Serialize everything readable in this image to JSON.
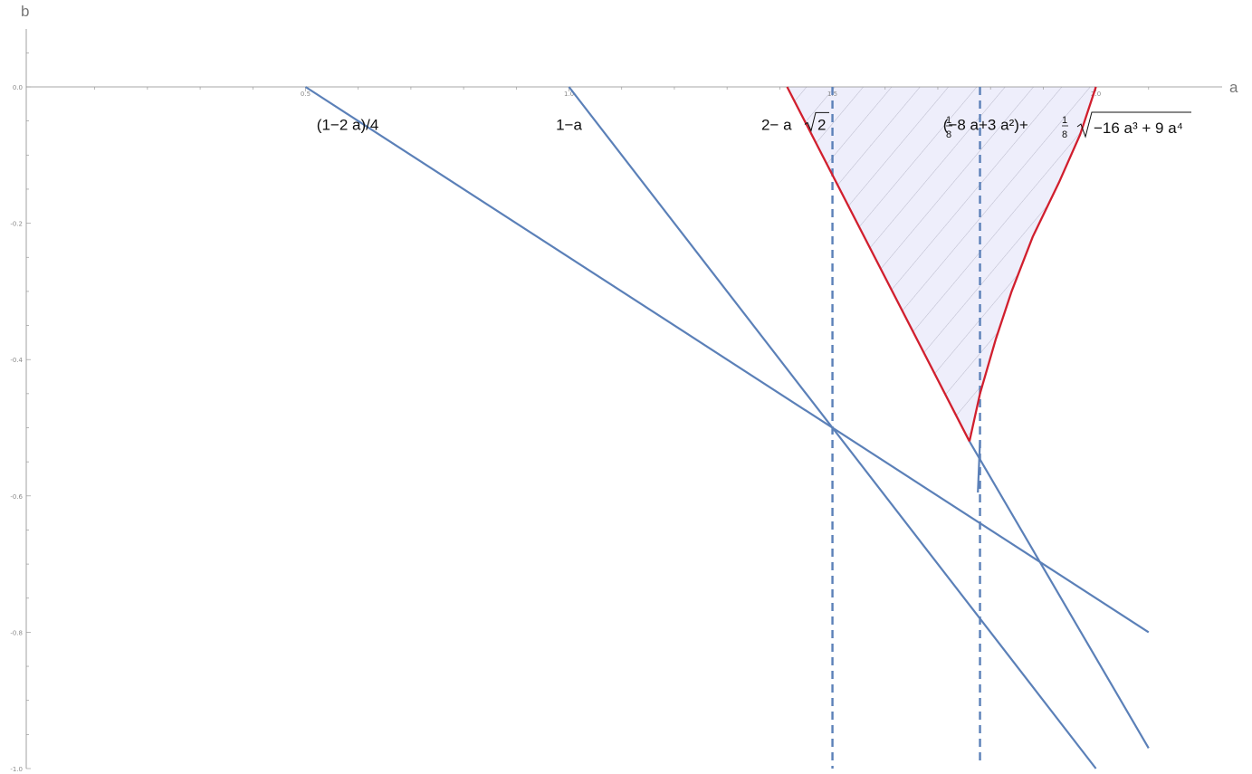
{
  "chart_data": {
    "type": "line",
    "xlabel": "a",
    "ylabel": "b",
    "xlim": [
      -0.03,
      2.2
    ],
    "ylim": [
      -1.0,
      0.085
    ],
    "x_ticks": [
      {
        "value": 0.5,
        "label": "0.5"
      },
      {
        "value": 1.0,
        "label": "1.0"
      },
      {
        "value": 1.5,
        "label": "1.5"
      },
      {
        "value": 2.0,
        "label": "2.0"
      }
    ],
    "y_ticks": [
      {
        "value": 0.0,
        "label": "0.0"
      },
      {
        "value": -0.2,
        "label": "-0.2"
      },
      {
        "value": -0.4,
        "label": "-0.4"
      },
      {
        "value": -0.6,
        "label": "-0.6"
      },
      {
        "value": -0.8,
        "label": "-0.8"
      },
      {
        "value": -1.0,
        "label": "-1.0"
      }
    ],
    "colors": {
      "lines": "#5b80b8",
      "boundary": "#d11f2e",
      "region_fill": "#eeeefb",
      "hatch": "#b4b4c6"
    },
    "series": [
      {
        "name": "(1−2 a)/4",
        "type": "line",
        "x": [
          0.5,
          2.1
        ],
        "y": [
          0.0,
          -0.8
        ]
      },
      {
        "name": "1−a",
        "type": "line",
        "x": [
          1.0,
          2.0
        ],
        "y": [
          0.0,
          -1.0
        ]
      },
      {
        "type": "line",
        "x": [
          1.76,
          2.1
        ],
        "y": [
          -0.52,
          -0.97
        ]
      },
      {
        "type": "vline",
        "x": 1.5,
        "y": [
          0.0,
          -1.0
        ],
        "dash": true
      },
      {
        "type": "vline",
        "x": 1.78,
        "y": [
          0.0,
          -0.993
        ],
        "dash": true
      },
      {
        "type": "line",
        "x": [
          1.78,
          1.776
        ],
        "y": [
          -0.52,
          -0.595
        ]
      }
    ],
    "region": {
      "name": "feasible-region",
      "boundary_lines": [
        {
          "name": "2− a √2",
          "x": [
            1.414,
            1.76
          ],
          "y": [
            0.0,
            -0.52
          ]
        },
        {
          "name": "1/8 (−8 a+3 a²)+1/8 √(−16 a³ + 9 a⁴)",
          "x": [
            1.76,
            1.78,
            1.81,
            1.84,
            1.88,
            1.93,
            1.97,
            2.0
          ],
          "y": [
            -0.52,
            -0.45,
            -0.37,
            -0.3,
            -0.22,
            -0.14,
            -0.07,
            0.0
          ]
        }
      ],
      "top": {
        "x": [
          1.414,
          2.0
        ],
        "y": [
          0.0,
          0.0
        ]
      },
      "hatched": true
    },
    "annotations": [
      {
        "text": "(1−2 a)/4",
        "x": 0.58,
        "y": -0.055
      },
      {
        "text": "1−a",
        "x": 1.0,
        "y": -0.055
      },
      {
        "text": "2− a",
        "x": 1.365,
        "y": -0.055,
        "radicand": "2"
      },
      {
        "text": "(−8 a+3 a²)+",
        "x": 1.71,
        "y": -0.055
      }
    ]
  },
  "labels": {
    "frac_num_1": "1",
    "frac_den_1": "8",
    "frac_num_2": "1",
    "frac_den_2": "8",
    "sqrt_expr": "−16 a³ + 9 a⁴"
  }
}
